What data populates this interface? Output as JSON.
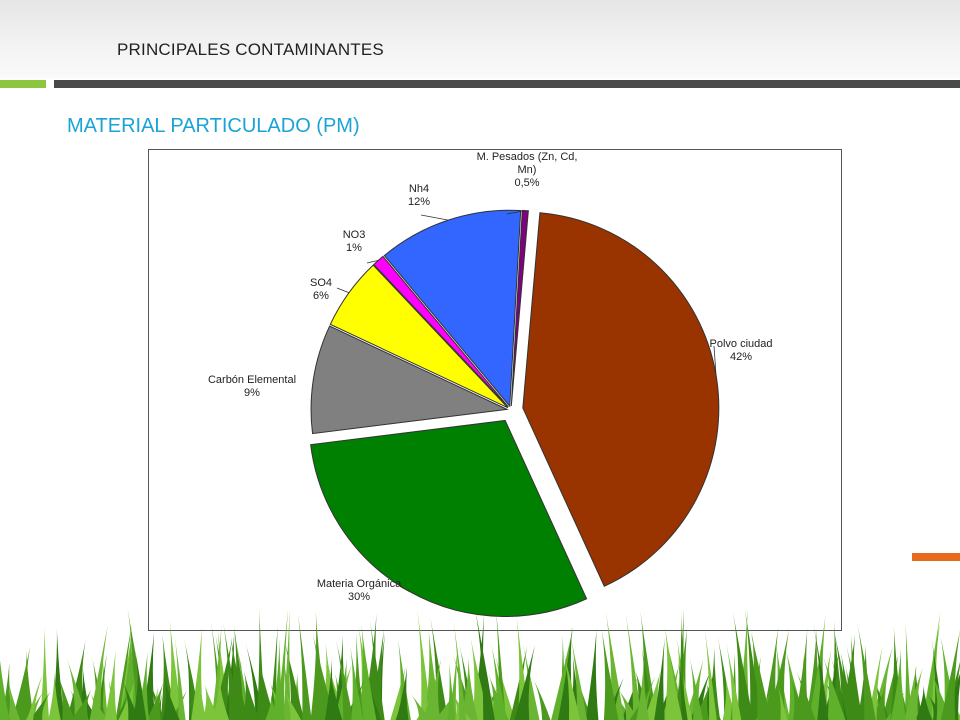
{
  "header": {
    "title": "PRINCIPALES CONTAMINANTES"
  },
  "slide": {
    "subtitle": "MATERIAL PARTICULADO (PM)"
  },
  "theme": {
    "accent_green": "#8cc63f",
    "accent_dark": "#4a4a4a",
    "accent_orange": "#e86a1c",
    "subtitle_color": "#1aa3d6"
  },
  "chart_data": {
    "type": "pie",
    "title": "",
    "exploded": true,
    "slices": [
      {
        "label": "Polvo ciudad",
        "value_label": "42%",
        "value": 42,
        "color": "#993300"
      },
      {
        "label": "Materia Orgánica",
        "value_label": "30%",
        "value": 30,
        "color": "#008000"
      },
      {
        "label": "Carbón Elemental",
        "value_label": "9%",
        "value": 9,
        "color": "#808080"
      },
      {
        "label": "SO4",
        "value_label": "6%",
        "value": 6,
        "color": "#ffff00"
      },
      {
        "label": "NO3",
        "value_label": "1%",
        "value": 1,
        "color": "#ff00ff"
      },
      {
        "label": "Nh4",
        "value_label": "12%",
        "value": 12,
        "color": "#3366ff"
      },
      {
        "label": "M. Pesados (Zn, Cd, Mn)",
        "value_label": "0,5%",
        "value": 0.5,
        "color": "#800080"
      }
    ]
  }
}
